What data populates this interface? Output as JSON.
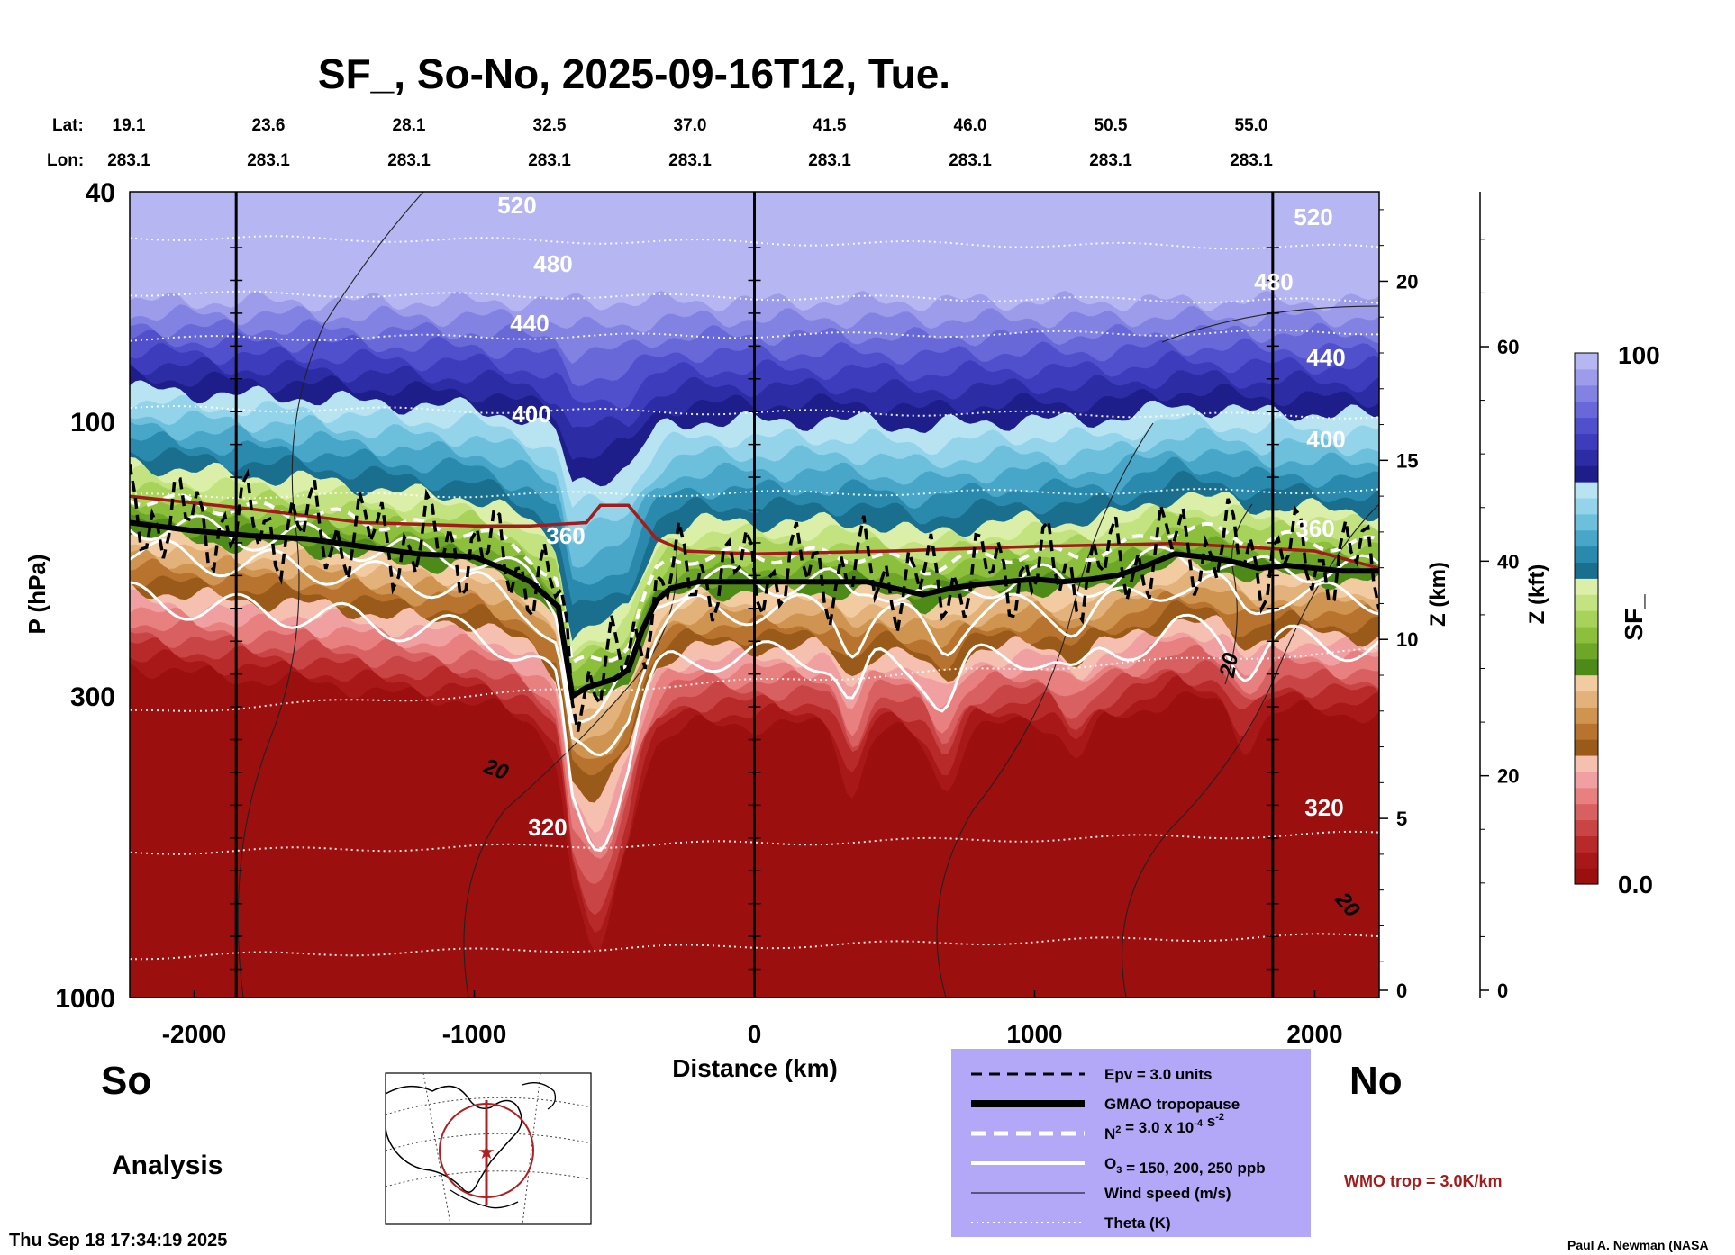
{
  "title": "SF_, So-No, 2025-09-16T12, Tue.",
  "top_axis": {
    "lat_label": "Lat:",
    "lon_label": "Lon:",
    "lat": [
      "19.1",
      "23.6",
      "28.1",
      "32.5",
      "37.0",
      "41.5",
      "46.0",
      "50.5",
      "55.0"
    ],
    "lon": [
      "283.1",
      "283.1",
      "283.1",
      "283.1",
      "283.1",
      "283.1",
      "283.1",
      "283.1",
      "283.1"
    ]
  },
  "chart_data": {
    "type": "heatmap",
    "title": "SF_, So-No, 2025-09-16T12, Tue.",
    "xlabel": "Distance (km)",
    "ylabel": "P (hPa)",
    "xlim": [
      -2230,
      2230
    ],
    "ylim": [
      1000,
      40
    ],
    "y_scale": "log",
    "x_ticks": [
      "-2000",
      "-1000",
      "0",
      "1000",
      "2000"
    ],
    "x_tick_values": [
      -2000,
      -1000,
      0,
      1000,
      2000
    ],
    "y_ticks": [
      "40",
      "100",
      "300",
      "1000"
    ],
    "y_tick_values": [
      40,
      100,
      300,
      1000
    ],
    "vertical_lines_km": [
      -1850,
      0,
      1850
    ],
    "z_km_axis": {
      "label": "Z (km)",
      "ticks": [
        "0",
        "5",
        "10",
        "15",
        "20"
      ],
      "tick_values": [
        0,
        5,
        10,
        15,
        20
      ]
    },
    "z_kft_axis": {
      "label": "Z (kft)",
      "ticks": [
        "0",
        "20",
        "40",
        "60"
      ],
      "tick_values": [
        0,
        20,
        40,
        60
      ]
    },
    "colorbar": {
      "label": "SF_",
      "min_label": "0.0",
      "max_label": "100",
      "min": 0,
      "max": 100,
      "colors": [
        "#9b0f0f",
        "#a81818",
        "#b82a2a",
        "#c94545",
        "#d96060",
        "#e88080",
        "#f0a0a0",
        "#f5c0b0",
        "#9a5a1a",
        "#b8742e",
        "#cf9450",
        "#e2b27a",
        "#f2cca0",
        "#4e8a18",
        "#6ea628",
        "#8cc03c",
        "#a8d35a",
        "#c2e380",
        "#dcefa8",
        "#1a6f8e",
        "#2a8aae",
        "#48a6c8",
        "#6cc0dc",
        "#94d4ea",
        "#b8e4f2",
        "#1e1e8a",
        "#2c2ca4",
        "#3c3cbc",
        "#5050cc",
        "#6868d8",
        "#8282e2",
        "#9c9cea",
        "#b6b6f2"
      ]
    },
    "theta_labels": [
      "520",
      "480",
      "440",
      "400",
      "360",
      "360",
      "320",
      "520",
      "480",
      "440",
      "400",
      "320"
    ],
    "wind_labels": [
      "20",
      "20",
      "20"
    ],
    "tropopause_gmao_km": [
      -2230,
      -2000,
      -1800,
      -1600,
      -1400,
      -1200,
      -1000,
      -900,
      -800,
      -700,
      -650,
      -600,
      -550,
      -500,
      -450,
      -400,
      -350,
      -300,
      -200,
      -100,
      0,
      100,
      200,
      300,
      400,
      500,
      600,
      700,
      800,
      900,
      1000,
      1100,
      1200,
      1300,
      1400,
      1500,
      1600,
      1700,
      1800,
      1900,
      2000,
      2100,
      2230
    ],
    "tropopause_gmao_hpa": [
      150,
      155,
      158,
      160,
      165,
      170,
      172,
      180,
      190,
      210,
      300,
      290,
      285,
      280,
      270,
      230,
      205,
      195,
      190,
      190,
      190,
      190,
      190,
      190,
      190,
      195,
      200,
      195,
      192,
      190,
      188,
      190,
      188,
      185,
      178,
      170,
      172,
      175,
      180,
      178,
      180,
      182,
      182
    ],
    "wmo_trop_km": [
      -2230,
      -1800,
      -1400,
      -1000,
      -800,
      -600,
      -550,
      -450,
      -350,
      -250,
      0,
      500,
      1000,
      1500,
      2000,
      2230
    ],
    "wmo_trop_hpa": [
      135,
      142,
      150,
      152,
      152,
      150,
      140,
      140,
      160,
      168,
      170,
      168,
      165,
      163,
      168,
      180
    ]
  },
  "legend": {
    "items": [
      {
        "label": "Epv = 3.0 units",
        "style": "dashed-black"
      },
      {
        "label": "GMAO tropopause",
        "style": "thick-black"
      },
      {
        "label_parts": [
          "N",
          "2",
          " = 3.0 x 10",
          "-4",
          " s",
          "-2"
        ],
        "style": "dashed-white"
      },
      {
        "label_parts": [
          "O",
          "3",
          " = 150, 200, 250 ppb"
        ],
        "style": "solid-white"
      },
      {
        "label": "Wind speed (m/s)",
        "style": "thin-black"
      },
      {
        "label": "Theta (K)",
        "style": "dotted-white"
      }
    ],
    "background": "#b3a8f7"
  },
  "labels": {
    "south": "So",
    "north": "No",
    "analysis": "Analysis",
    "wmo": "WMO trop = 3.0K/km",
    "timestamp": "Thu Sep 18 17:34:19 2025",
    "credit": "Paul A. Newman (NASA"
  },
  "colors": {
    "wmo_line": "#a31c1c",
    "map_ring": "#b02020"
  }
}
